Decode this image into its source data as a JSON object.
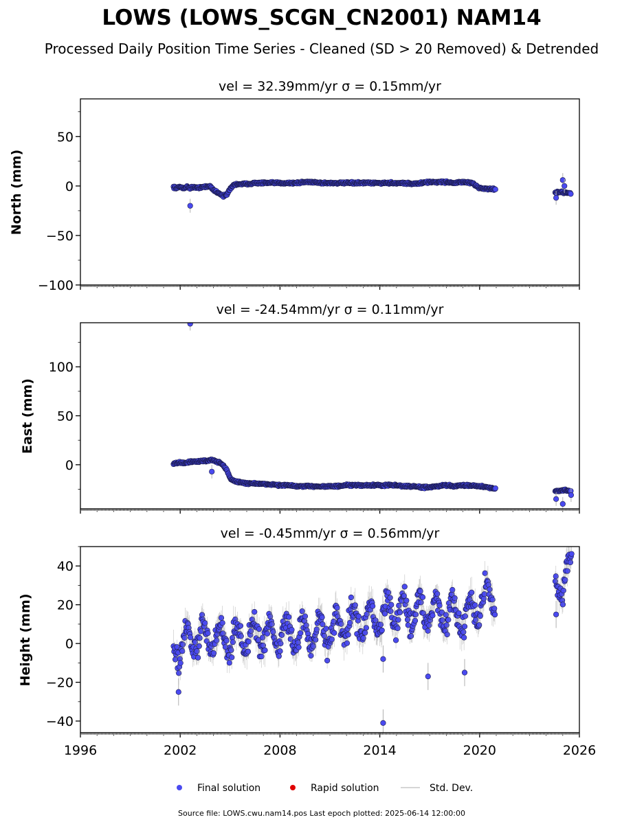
{
  "figure": {
    "title": "LOWS (LOWS_SCGN_CN2001) NAM14",
    "subtitle": "Processed Daily Position Time Series - Cleaned (SD > 20 Removed) & Detrended",
    "footer": "Source file: LOWS.cwu.nam14.pos  Last epoch plotted: 2025-06-14 12:00:00",
    "colors": {
      "final": "#4a4af0",
      "rapid": "#e00000",
      "stddev": "#c0c0c0",
      "edge": "#1a1a4a"
    }
  },
  "legend": {
    "placement": "bottom-center",
    "items": [
      {
        "label": "Final solution",
        "marker": "dot",
        "color": "#4a4af0"
      },
      {
        "label": "Rapid solution",
        "marker": "dot",
        "color": "#e00000"
      },
      {
        "label": "Std. Dev.",
        "marker": "line",
        "color": "#c0c0c0"
      }
    ]
  },
  "chart_data": [
    {
      "type": "scatter",
      "title": "vel = 32.39mm/yr   σ = 0.15mm/yr",
      "ylabel": "North (mm)",
      "xlabel": "",
      "xlim": [
        1996,
        2026
      ],
      "ylim": [
        -100,
        88
      ],
      "yticks": [
        50,
        0,
        -50,
        -100
      ],
      "ytick_labels": [
        "50",
        "0",
        "−50",
        "−100"
      ],
      "xtick_labels_shown": false,
      "series": [
        {
          "values_description": "daily positions",
          "x": [
            2001.6,
            2001.8,
            2002.0,
            2002.2,
            2002.4,
            2002.6,
            2002.8,
            2003.0,
            2003.3,
            2003.6,
            2003.8,
            2004.0,
            2004.2,
            2004.4,
            2004.6,
            2004.8,
            2005.0,
            2005.2,
            2005.5,
            2006.0,
            2006.5,
            2007.0,
            2007.5,
            2008.0,
            2008.5,
            2009.0,
            2009.5,
            2010.0,
            2010.5,
            2011.0,
            2011.5,
            2012.0,
            2012.5,
            2013.0,
            2013.5,
            2014.0,
            2014.5,
            2015.0,
            2015.5,
            2016.0,
            2016.5,
            2017.0,
            2017.5,
            2018.0,
            2018.5,
            2019.0,
            2019.5,
            2020.0,
            2020.5,
            2020.9,
            2024.6,
            2024.8,
            2025.0,
            2025.2,
            2025.5
          ],
          "y": [
            -1,
            -2,
            -1,
            -2,
            -1,
            -2,
            -1,
            -2,
            -1,
            -1,
            0,
            -4,
            -6,
            -8,
            -10,
            -9,
            -3,
            1,
            2,
            2,
            3,
            3,
            3,
            3,
            3,
            3,
            4,
            4,
            3,
            3,
            3,
            3,
            3,
            3,
            3,
            3,
            3,
            3,
            3,
            2,
            3,
            4,
            4,
            4,
            3,
            4,
            3,
            -2,
            -3,
            -3,
            -7,
            -6,
            -6,
            -7,
            -7
          ]
        },
        {
          "values_description": "outliers",
          "x": [
            2002.6,
            2025.0,
            2024.6,
            2025.1
          ],
          "y": [
            -20,
            6,
            -12,
            0
          ]
        }
      ]
    },
    {
      "type": "scatter",
      "title": "vel = -24.54mm/yr   σ = 0.11mm/yr",
      "ylabel": "East (mm)",
      "xlabel": "",
      "xlim": [
        1996,
        2026
      ],
      "ylim": [
        -45,
        145
      ],
      "yticks": [
        100,
        50,
        0
      ],
      "ytick_labels": [
        "100",
        "50",
        "0"
      ],
      "xtick_labels_shown": false,
      "series": [
        {
          "values_description": "daily positions",
          "x": [
            2001.6,
            2001.8,
            2002.0,
            2002.3,
            2002.6,
            2003.0,
            2003.3,
            2003.6,
            2003.9,
            2004.2,
            2004.5,
            2004.8,
            2005.0,
            2005.3,
            2005.6,
            2006.0,
            2006.5,
            2007.0,
            2007.5,
            2008.0,
            2008.5,
            2009.0,
            2009.5,
            2010.0,
            2010.5,
            2011.0,
            2011.5,
            2012.0,
            2012.5,
            2013.0,
            2013.5,
            2014.0,
            2014.5,
            2015.0,
            2015.5,
            2016.0,
            2016.5,
            2017.0,
            2017.5,
            2018.0,
            2018.5,
            2019.0,
            2019.5,
            2020.0,
            2020.5,
            2020.9,
            2024.6,
            2024.8,
            2025.0,
            2025.2,
            2025.5
          ],
          "y": [
            1,
            2,
            2,
            2,
            3,
            3,
            4,
            4,
            5,
            3,
            1,
            -5,
            -14,
            -17,
            -18,
            -19,
            -19,
            -20,
            -20,
            -21,
            -21,
            -22,
            -22,
            -22,
            -22,
            -22,
            -22,
            -21,
            -21,
            -21,
            -21,
            -21,
            -21,
            -21,
            -22,
            -22,
            -23,
            -23,
            -22,
            -21,
            -22,
            -21,
            -21,
            -22,
            -23,
            -24,
            -27,
            -27,
            -26,
            -26,
            -27
          ]
        },
        {
          "values_description": "outliers",
          "x": [
            2002.6,
            2024.6,
            2025.0,
            2025.5,
            2003.9
          ],
          "y": [
            144,
            -35,
            -40,
            -31,
            -7
          ]
        }
      ]
    },
    {
      "type": "scatter",
      "title": "vel = -0.45mm/yr   σ = 0.56mm/yr",
      "ylabel": "Height (mm)",
      "xlabel": "",
      "xlim": [
        1996,
        2026
      ],
      "ylim": [
        -46,
        50
      ],
      "yticks": [
        40,
        20,
        0,
        -20,
        -40
      ],
      "ytick_labels": [
        "40",
        "20",
        "0",
        "−20",
        "−40"
      ],
      "xticks": [
        1996,
        2002,
        2008,
        2014,
        2020,
        2026
      ],
      "xtick_labels": [
        "1996",
        "2002",
        "2008",
        "2014",
        "2020",
        "2026"
      ],
      "series": [
        {
          "values_description": "daily positions (seasonal oscillation with upward trend)",
          "trend": {
            "x": [
              2001.6,
              2003.0,
              2005.0,
              2007.0,
              2009.0,
              2011.0,
              2013.0,
              2015.0,
              2017.0,
              2019.0,
              2020.9,
              2024.6,
              2025.5
            ],
            "y": [
              -2,
              3,
              2,
              5,
              4,
              7,
              12,
              16,
              17,
              14,
              25,
              30,
              38
            ]
          },
          "seasonal_amplitude": 8,
          "spread": 5
        },
        {
          "values_description": "outliers",
          "x": [
            2001.9,
            2014.2,
            2014.2,
            2016.9,
            2019.1,
            2024.6
          ],
          "y": [
            -25,
            -41,
            -8,
            -17,
            -15,
            15
          ]
        }
      ]
    }
  ]
}
